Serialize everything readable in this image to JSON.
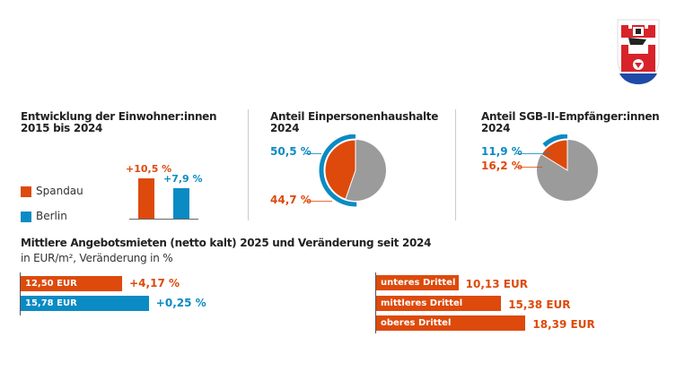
{
  "colors": {
    "spandau": "#dd4a0c",
    "berlin": "#0a8bc3",
    "gray": "#9b9b9b"
  },
  "logo": {
    "name": "Spandau coat of arms"
  },
  "chart_data": [
    {
      "type": "bar",
      "title": "Entwicklung der Einwohner:innen",
      "subtitle": "2015 bis 2024",
      "categories": [
        "Spandau",
        "Berlin"
      ],
      "values": [
        10.5,
        7.9
      ],
      "data_labels": [
        "+10,5 %",
        "+7,9 %"
      ],
      "legend": [
        {
          "name": "Spandau",
          "color": "#dd4a0c"
        },
        {
          "name": "Berlin",
          "color": "#0a8bc3"
        }
      ],
      "legend_position": "left"
    },
    {
      "type": "pie",
      "title": "Anteil Einpersonenhaushalte",
      "subtitle": "2024",
      "spandau": 44.7,
      "berlin": 50.5,
      "labels": {
        "berlin": "50,5 %",
        "spandau": "44,7 %"
      }
    },
    {
      "type": "pie",
      "title": "Anteil SGB-II-Empfänger:innen",
      "subtitle": "2024",
      "spandau": 16.2,
      "berlin": 11.9,
      "labels": {
        "berlin": "11,9 %",
        "spandau": "16,2 %"
      }
    },
    {
      "type": "bar",
      "orientation": "horizontal",
      "title": "Mittlere Angebotsmieten (netto kalt) 2025 und Veränderung seit 2024",
      "subtitle": "in EUR/m², Veränderung in %",
      "bars": [
        {
          "series": "Spandau",
          "value": 12.5,
          "label": "12,50 EUR",
          "change": "+4,17 %"
        },
        {
          "series": "Berlin",
          "value": 15.78,
          "label": "15,78 EUR",
          "change": "+0,25 %"
        }
      ]
    },
    {
      "type": "bar",
      "orientation": "horizontal",
      "bars": [
        {
          "category": "unteres Drittel",
          "value": 10.13,
          "label": "10,13 EUR"
        },
        {
          "category": "mittleres Drittel",
          "value": 15.38,
          "label": "15,38 EUR"
        },
        {
          "category": "oberes Drittel",
          "value": 18.39,
          "label": "18,39 EUR"
        }
      ]
    }
  ]
}
